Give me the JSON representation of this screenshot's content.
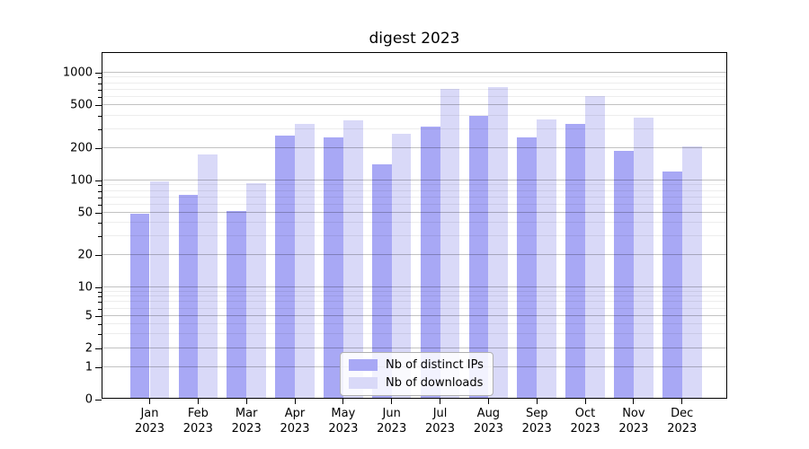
{
  "title": "digest 2023",
  "chart_data": {
    "type": "bar",
    "title": "digest 2023",
    "xlabel": "",
    "ylabel": "",
    "scale": "symlog",
    "grid": true,
    "legend_position": "lower center",
    "categories": [
      "Jan 2023",
      "Feb 2023",
      "Mar 2023",
      "Apr 2023",
      "May 2023",
      "Jun 2023",
      "Jul 2023",
      "Aug 2023",
      "Sep 2023",
      "Oct 2023",
      "Nov 2023",
      "Dec 2023"
    ],
    "series": [
      {
        "name": "Nb of distinct IPs",
        "color": "#a8a8f5",
        "values": [
          48,
          72,
          51,
          258,
          247,
          140,
          310,
          390,
          245,
          330,
          185,
          120
        ]
      },
      {
        "name": "Nb of downloads",
        "color": "#d9d9f8",
        "values": [
          96,
          170,
          92,
          330,
          355,
          265,
          700,
          725,
          365,
          590,
          375,
          205
        ]
      }
    ],
    "yticks": [
      0,
      1,
      2,
      5,
      10,
      20,
      50,
      100,
      200,
      500,
      1000
    ],
    "ylim": [
      0,
      1520
    ]
  }
}
